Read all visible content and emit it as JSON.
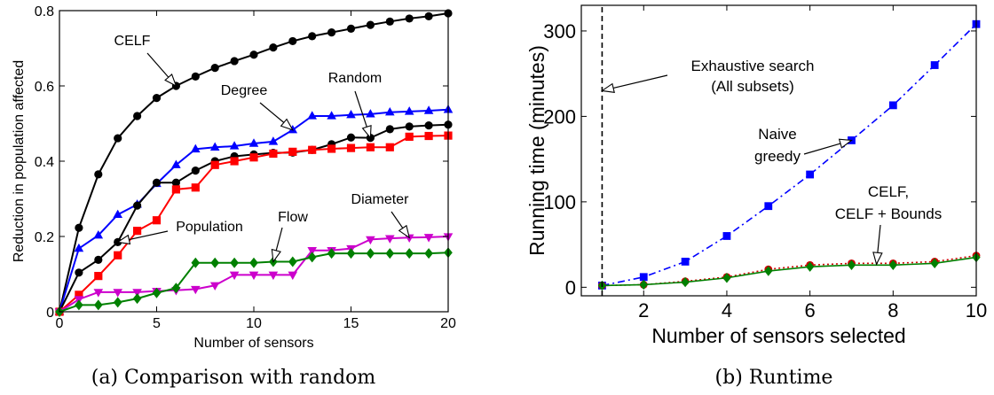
{
  "chart_data": [
    {
      "type": "line",
      "caption": "(a) Comparison with random",
      "xlabel": "Number of sensors",
      "ylabel": "Reduction in population affected",
      "xlim": [
        0,
        20
      ],
      "ylim": [
        0,
        0.8
      ],
      "xticks": [
        0,
        5,
        10,
        15,
        20
      ],
      "xtick_labels": [
        "0",
        "5",
        "10",
        "15",
        "20"
      ],
      "yticks": [
        0,
        0.2,
        0.4,
        0.6,
        0.8
      ],
      "ytick_labels": [
        "0",
        "0.2",
        "0.4",
        "0.6",
        "0.8"
      ],
      "grid": false,
      "legend": "none",
      "series": [
        {
          "name": "CELF",
          "color": "#000000",
          "marker": "circle",
          "x": [
            0,
            1,
            2,
            3,
            4,
            5,
            6,
            7,
            8,
            9,
            10,
            11,
            12,
            13,
            14,
            15,
            16,
            17,
            18,
            19,
            20
          ],
          "y": [
            0,
            0.223,
            0.365,
            0.461,
            0.52,
            0.568,
            0.6,
            0.625,
            0.648,
            0.666,
            0.683,
            0.702,
            0.719,
            0.732,
            0.742,
            0.752,
            0.762,
            0.771,
            0.779,
            0.785,
            0.793
          ]
        },
        {
          "name": "Degree",
          "color": "#0000ff",
          "marker": "triangle",
          "x": [
            0,
            1,
            2,
            3,
            4,
            5,
            6,
            7,
            8,
            9,
            10,
            11,
            12,
            13,
            14,
            15,
            16,
            17,
            18,
            19,
            20
          ],
          "y": [
            0,
            0.168,
            0.203,
            0.258,
            0.285,
            0.34,
            0.39,
            0.432,
            0.437,
            0.44,
            0.447,
            0.452,
            0.483,
            0.52,
            0.52,
            0.523,
            0.525,
            0.53,
            0.532,
            0.534,
            0.537
          ]
        },
        {
          "name": "Random",
          "color": "#000000",
          "marker": "circle",
          "x": [
            0,
            1,
            2,
            3,
            4,
            5,
            6,
            7,
            8,
            9,
            10,
            11,
            12,
            13,
            14,
            15,
            16,
            17,
            18,
            19,
            20
          ],
          "y": [
            0,
            0.104,
            0.138,
            0.185,
            0.282,
            0.343,
            0.343,
            0.375,
            0.4,
            0.413,
            0.418,
            0.422,
            0.423,
            0.43,
            0.445,
            0.463,
            0.462,
            0.485,
            0.492,
            0.495,
            0.497
          ]
        },
        {
          "name": "Population",
          "color": "#ff0000",
          "marker": "square",
          "x": [
            0,
            1,
            2,
            3,
            4,
            5,
            6,
            7,
            8,
            9,
            10,
            11,
            12,
            13,
            14,
            15,
            16,
            17,
            18,
            19,
            20
          ],
          "y": [
            0,
            0.045,
            0.095,
            0.15,
            0.215,
            0.243,
            0.325,
            0.33,
            0.39,
            0.4,
            0.41,
            0.42,
            0.425,
            0.43,
            0.433,
            0.435,
            0.437,
            0.437,
            0.465,
            0.467,
            0.468
          ]
        },
        {
          "name": "Diameter",
          "color": "#cc00cc",
          "marker": "triangle-down",
          "x": [
            0,
            1,
            2,
            3,
            4,
            5,
            6,
            7,
            8,
            9,
            10,
            11,
            12,
            13,
            14,
            15,
            16,
            17,
            18,
            19,
            20
          ],
          "y": [
            0,
            0.033,
            0.052,
            0.052,
            0.052,
            0.055,
            0.057,
            0.06,
            0.07,
            0.098,
            0.098,
            0.098,
            0.098,
            0.163,
            0.163,
            0.168,
            0.192,
            0.195,
            0.197,
            0.198,
            0.2
          ]
        },
        {
          "name": "Flow",
          "color": "#008000",
          "marker": "diamond",
          "x": [
            0,
            1,
            2,
            3,
            4,
            5,
            6,
            7,
            8,
            9,
            10,
            11,
            12,
            13,
            14,
            15,
            16,
            17,
            18,
            19,
            20
          ],
          "y": [
            0,
            0.018,
            0.018,
            0.025,
            0.035,
            0.05,
            0.063,
            0.13,
            0.13,
            0.13,
            0.13,
            0.133,
            0.133,
            0.145,
            0.155,
            0.155,
            0.155,
            0.155,
            0.155,
            0.155,
            0.157
          ]
        }
      ],
      "annotations": [
        {
          "text": "CELF",
          "series": "CELF",
          "at_x": 6
        },
        {
          "text": "Degree",
          "series": "Degree",
          "at_x": 12
        },
        {
          "text": "Random",
          "series": "Random",
          "at_x": 16
        },
        {
          "text": "Population",
          "series": "Random",
          "at_x": 3
        },
        {
          "text": "Flow",
          "series": "Flow",
          "at_x": 11
        },
        {
          "text": "Diameter",
          "series": "Diameter",
          "at_x": 18
        }
      ]
    },
    {
      "type": "line",
      "caption": "(b) Runtime",
      "xlabel": "Number of sensors selected",
      "ylabel": "Running time (minutes)",
      "xlim": [
        0.5,
        10
      ],
      "ylim": [
        -10,
        330
      ],
      "xticks": [
        2,
        4,
        6,
        8,
        10
      ],
      "xtick_labels": [
        "2",
        "4",
        "6",
        "8",
        "10"
      ],
      "yticks": [
        0,
        100,
        200,
        300
      ],
      "ytick_labels": [
        "0",
        "100",
        "200",
        "300"
      ],
      "grid": false,
      "legend": "none",
      "series": [
        {
          "name": "Naive greedy",
          "color": "#0000ff",
          "marker": "square",
          "line": "dashdot",
          "x": [
            1,
            2,
            3,
            4,
            5,
            6,
            7,
            8,
            9,
            10
          ],
          "y": [
            2,
            12,
            30,
            60,
            95,
            132,
            172,
            213,
            260,
            308
          ]
        },
        {
          "name": "CELF",
          "color": "#cc0000",
          "marker": "circle",
          "line": "dotted",
          "x": [
            1,
            2,
            3,
            4,
            5,
            6,
            7,
            8,
            9,
            10
          ],
          "y": [
            2,
            3,
            7,
            12,
            21,
            26,
            28,
            28,
            30,
            37
          ]
        },
        {
          "name": "CELF + Bounds",
          "color": "#008000",
          "marker": "diamond",
          "line": "solid",
          "x": [
            1,
            2,
            3,
            4,
            5,
            6,
            7,
            8,
            9,
            10
          ],
          "y": [
            2,
            3,
            6,
            11,
            19,
            24,
            26,
            26,
            28,
            35
          ]
        },
        {
          "name": "Exhaustive search",
          "color": "#000000",
          "marker": "none",
          "line": "dashed",
          "x": [
            1,
            1
          ],
          "y": [
            -10,
            330
          ]
        }
      ],
      "annotations": [
        {
          "text": "Exhaustive search",
          "line2": "(All subsets)",
          "series": "Exhaustive search",
          "at_y": 230
        },
        {
          "text": "Naive",
          "line2": "greedy",
          "series": "Naive greedy",
          "at_x": 7
        },
        {
          "text": "CELF,",
          "line2": "CELF + Bounds",
          "series": "CELF + Bounds",
          "at_x": 7.6
        }
      ]
    }
  ]
}
